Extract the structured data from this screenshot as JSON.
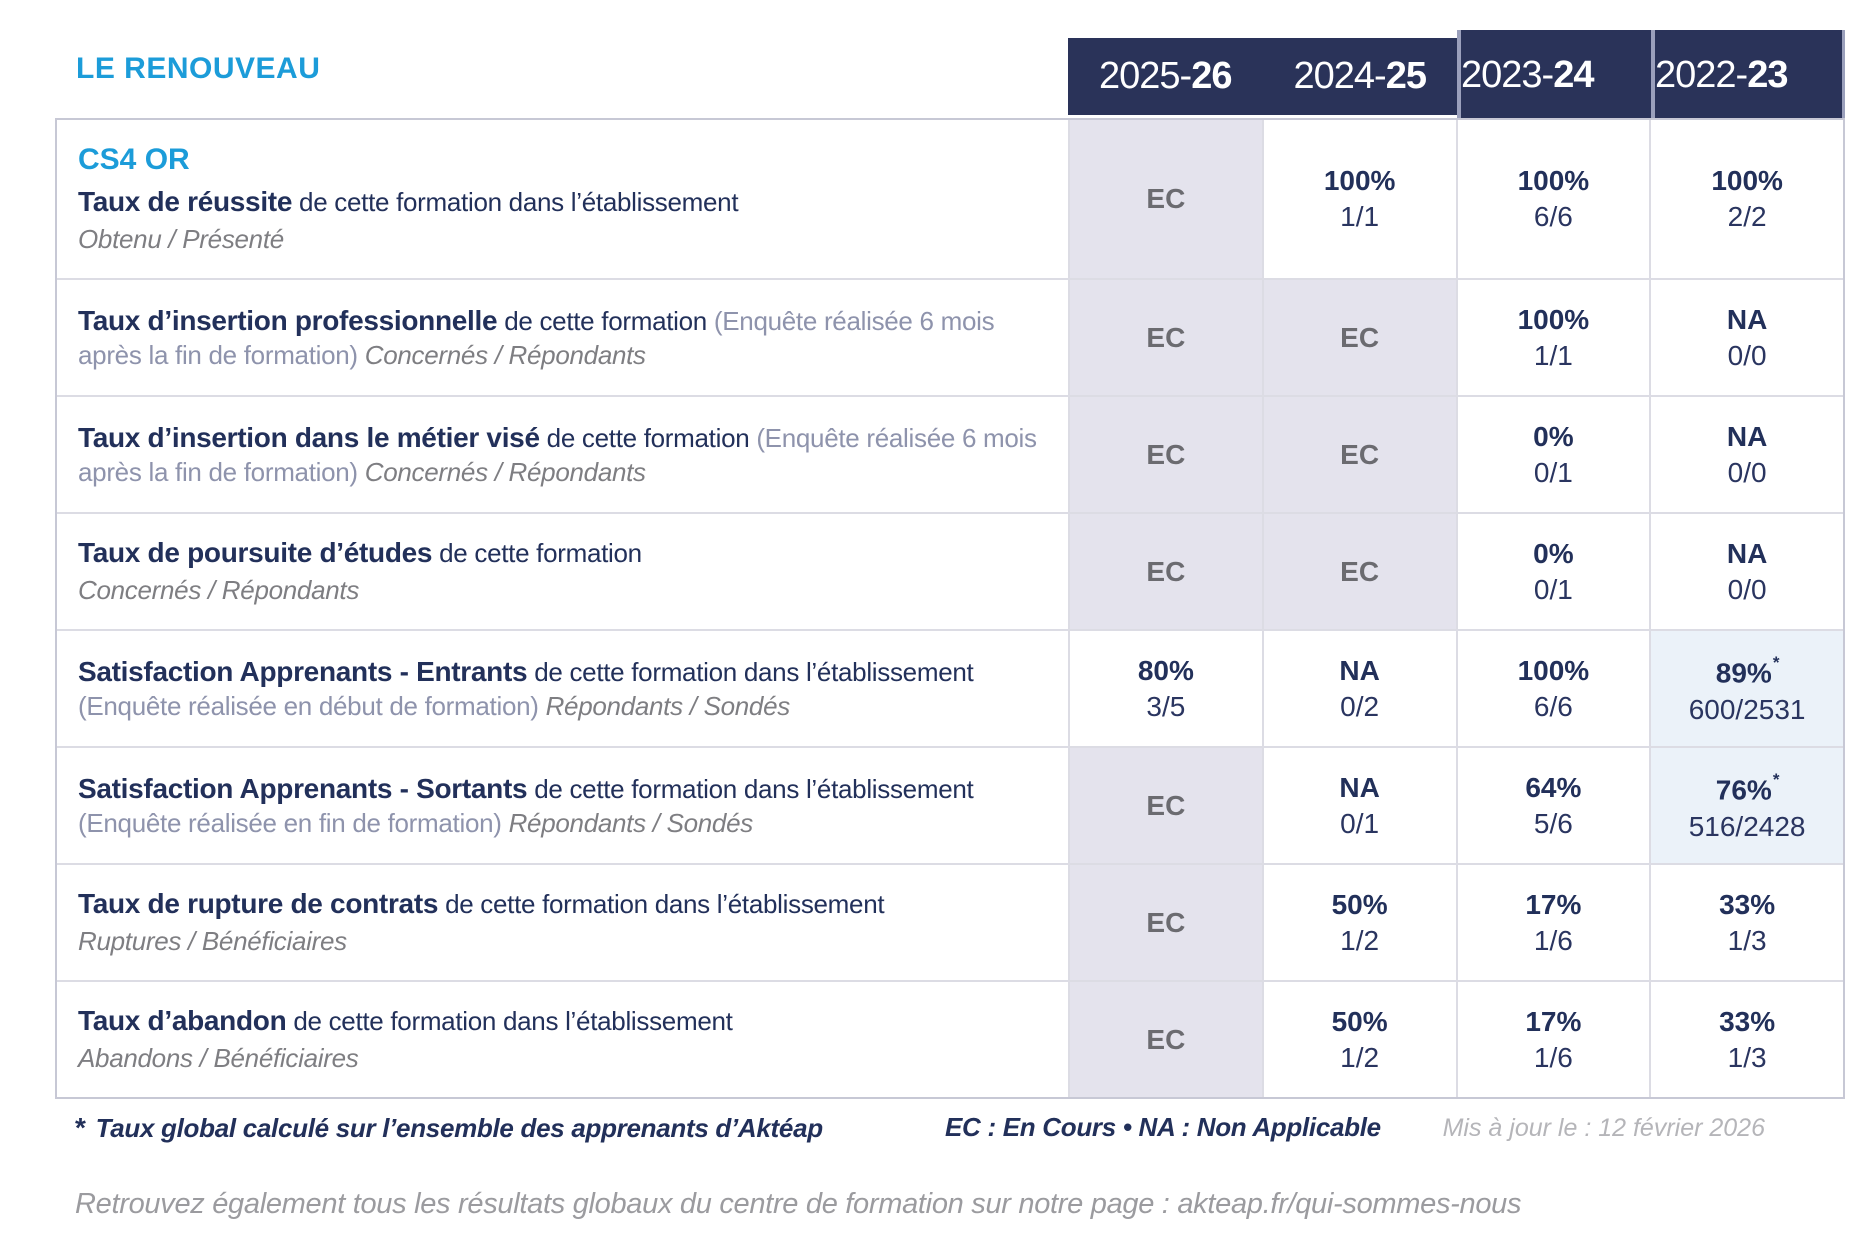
{
  "brand": {
    "title": "LE RENOUVEAU"
  },
  "colors": {
    "accent_blue": "#1C9CD9",
    "header_navy": "#2A3359",
    "text_navy": "#22305A",
    "ec_cell_bg": "#E4E3ED",
    "global_rate_cell_bg": "#EBF2F9",
    "muted_gray": "#9B9B9F"
  },
  "header_years": [
    {
      "prefix": "2025-",
      "suffix": "26"
    },
    {
      "prefix": "2024-",
      "suffix": "25"
    },
    {
      "prefix": "2023-",
      "suffix": "24"
    },
    {
      "prefix": "2022-",
      "suffix": "23"
    }
  ],
  "rows": [
    {
      "code": "CS4 OR",
      "title": "Taux de réussite",
      "desc": "de cette formation dans l’établissement",
      "paren": "",
      "inline_note": "",
      "line_note": "Obtenu / Présenté",
      "cells": [
        {
          "kind": "ec",
          "main": "EC",
          "frac": "",
          "mark": ""
        },
        {
          "kind": "value",
          "main": "100%",
          "frac": "1/1",
          "mark": ""
        },
        {
          "kind": "value",
          "main": "100%",
          "frac": "6/6",
          "mark": ""
        },
        {
          "kind": "value",
          "main": "100%",
          "frac": "2/2",
          "mark": ""
        }
      ]
    },
    {
      "code": "",
      "title": "Taux d’insertion professionnelle",
      "desc": "de cette formation",
      "paren": "(Enquête réalisée 6 mois après la fin de formation)",
      "inline_note": "Concernés / Répondants",
      "line_note": "",
      "cells": [
        {
          "kind": "ec",
          "main": "EC",
          "frac": "",
          "mark": ""
        },
        {
          "kind": "ec",
          "main": "EC",
          "frac": "",
          "mark": ""
        },
        {
          "kind": "value",
          "main": "100%",
          "frac": "1/1",
          "mark": ""
        },
        {
          "kind": "value",
          "main": "NA",
          "frac": "0/0",
          "mark": ""
        }
      ]
    },
    {
      "code": "",
      "title": "Taux d’insertion dans le métier visé",
      "desc": "de cette formation",
      "paren": "(Enquête réalisée 6 mois après la fin de formation)",
      "inline_note": "Concernés / Répondants",
      "line_note": "",
      "cells": [
        {
          "kind": "ec",
          "main": "EC",
          "frac": "",
          "mark": ""
        },
        {
          "kind": "ec",
          "main": "EC",
          "frac": "",
          "mark": ""
        },
        {
          "kind": "value",
          "main": "0%",
          "frac": "0/1",
          "mark": ""
        },
        {
          "kind": "value",
          "main": "NA",
          "frac": "0/0",
          "mark": ""
        }
      ]
    },
    {
      "code": "",
      "title": "Taux de poursuite d’études",
      "desc": "de cette formation",
      "paren": "",
      "inline_note": "",
      "line_note": "Concernés / Répondants",
      "cells": [
        {
          "kind": "ec",
          "main": "EC",
          "frac": "",
          "mark": ""
        },
        {
          "kind": "ec",
          "main": "EC",
          "frac": "",
          "mark": ""
        },
        {
          "kind": "value",
          "main": "0%",
          "frac": "0/1",
          "mark": ""
        },
        {
          "kind": "value",
          "main": "NA",
          "frac": "0/0",
          "mark": ""
        }
      ]
    },
    {
      "code": "",
      "title": "Satisfaction Apprenants - Entrants",
      "desc": "de cette formation dans l’établissement",
      "paren": "(Enquête réalisée en début de formation)",
      "inline_note": "Répondants / Sondés",
      "line_note": "",
      "cells": [
        {
          "kind": "value",
          "main": "80%",
          "frac": "3/5",
          "mark": ""
        },
        {
          "kind": "value",
          "main": "NA",
          "frac": "0/2",
          "mark": ""
        },
        {
          "kind": "value",
          "main": "100%",
          "frac": "6/6",
          "mark": ""
        },
        {
          "kind": "star",
          "main": "89%",
          "frac": "600/2531",
          "mark": "*"
        }
      ]
    },
    {
      "code": "",
      "title": "Satisfaction Apprenants - Sortants",
      "desc": "de cette formation dans l’établissement",
      "paren": "(Enquête réalisée en fin de formation)",
      "inline_note": "Répondants / Sondés",
      "line_note": "",
      "cells": [
        {
          "kind": "ec",
          "main": "EC",
          "frac": "",
          "mark": ""
        },
        {
          "kind": "value",
          "main": "NA",
          "frac": "0/1",
          "mark": ""
        },
        {
          "kind": "value",
          "main": "64%",
          "frac": "5/6",
          "mark": ""
        },
        {
          "kind": "star",
          "main": "76%",
          "frac": "516/2428",
          "mark": "*"
        }
      ]
    },
    {
      "code": "",
      "title": "Taux de rupture de contrats",
      "desc": "de cette formation dans l’établissement",
      "paren": "",
      "inline_note": "",
      "line_note": "Ruptures / Bénéficiaires",
      "cells": [
        {
          "kind": "ec",
          "main": "EC",
          "frac": "",
          "mark": ""
        },
        {
          "kind": "value",
          "main": "50%",
          "frac": "1/2",
          "mark": ""
        },
        {
          "kind": "value",
          "main": "17%",
          "frac": "1/6",
          "mark": ""
        },
        {
          "kind": "value",
          "main": "33%",
          "frac": "1/3",
          "mark": ""
        }
      ]
    },
    {
      "code": "",
      "title": "Taux d’abandon",
      "desc": "de cette formation dans l’établissement",
      "paren": "",
      "inline_note": "",
      "line_note": "Abandons / Bénéficiaires",
      "cells": [
        {
          "kind": "ec",
          "main": "EC",
          "frac": "",
          "mark": ""
        },
        {
          "kind": "value",
          "main": "50%",
          "frac": "1/2",
          "mark": ""
        },
        {
          "kind": "value",
          "main": "17%",
          "frac": "1/6",
          "mark": ""
        },
        {
          "kind": "value",
          "main": "33%",
          "frac": "1/3",
          "mark": ""
        }
      ]
    }
  ],
  "legend": {
    "star_mark": "*",
    "footnote": "Taux global calculé sur l’ensemble des apprenants d’Aktéap",
    "abbrev": "EC : En Cours  •  NA : Non Applicable",
    "updated": "Mis à jour le : 12 février 2026"
  },
  "bottom_note": "Retrouvez également tous les résultats globaux du centre de formation sur notre page : akteap.fr/qui-sommes-nous"
}
